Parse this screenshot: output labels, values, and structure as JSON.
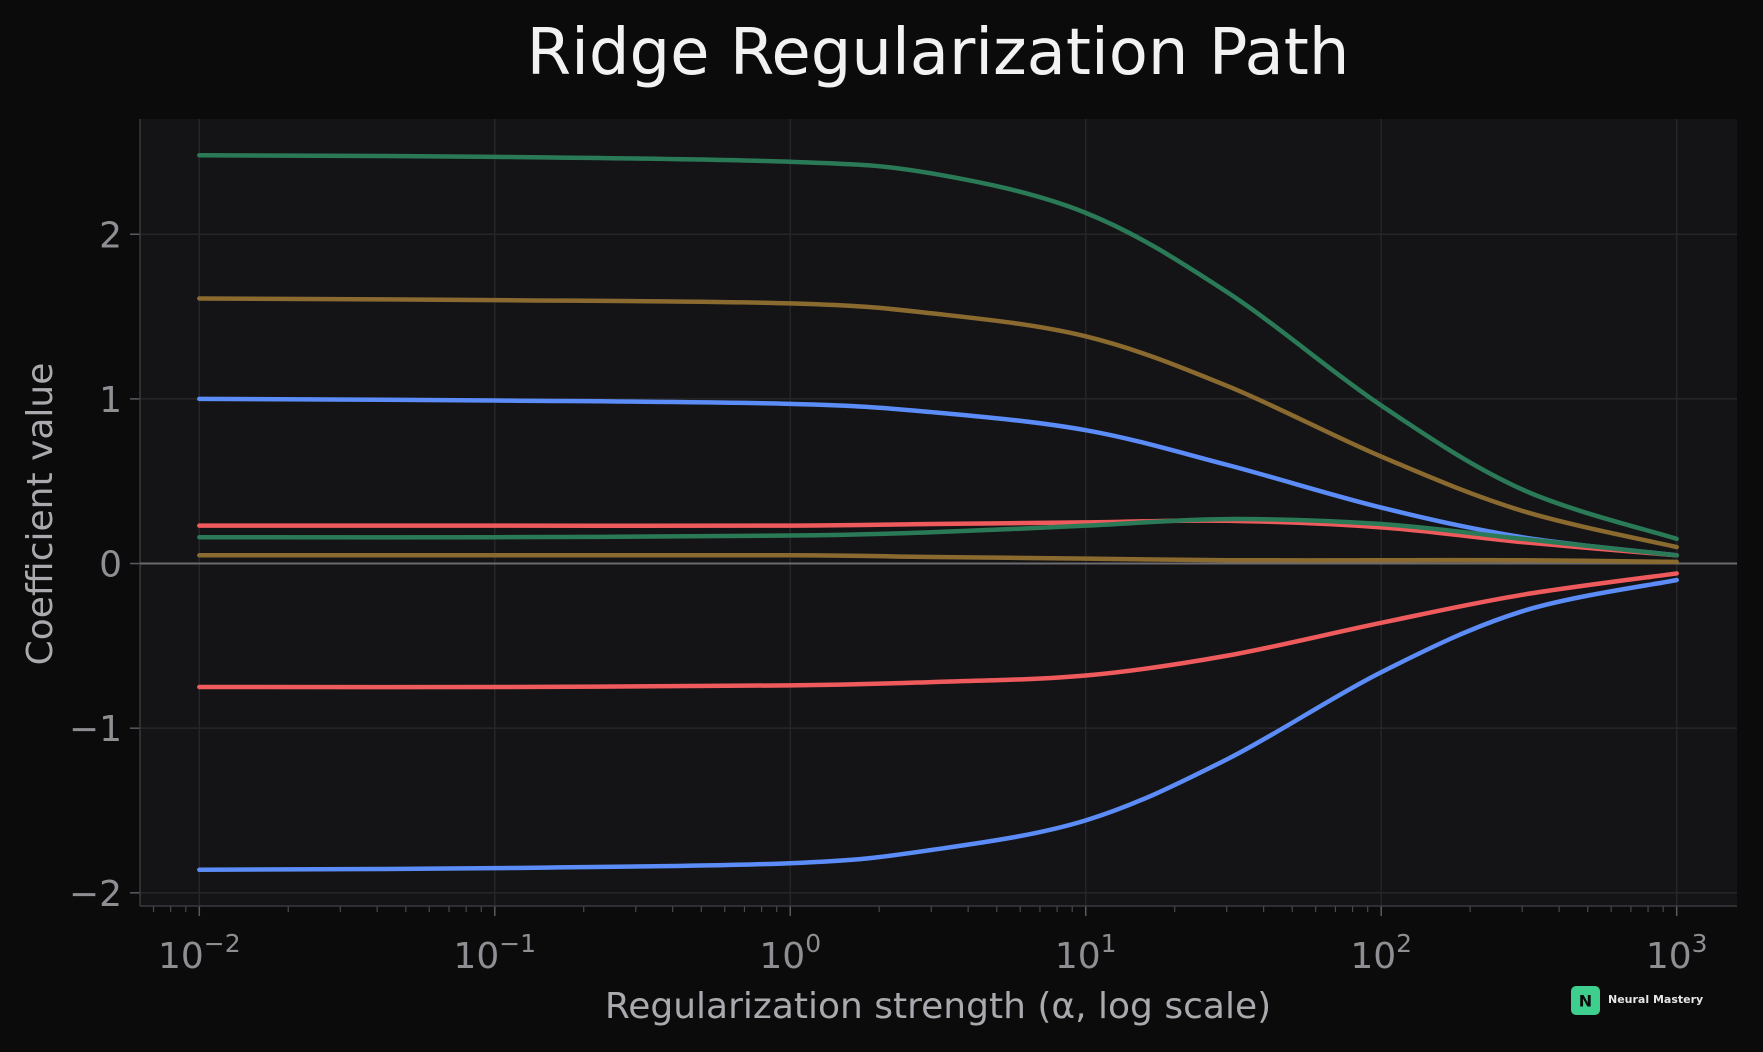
{
  "chart_data": {
    "type": "line",
    "title": "Ridge Regularization Path",
    "xlabel": "Regularization strength (α, log scale)",
    "ylabel": "Coefficient value",
    "x_scale": "log",
    "xlim": [
      0.0063,
      1600
    ],
    "ylim": [
      -2.08,
      2.7
    ],
    "x_ticks": [
      {
        "value": 0.01,
        "base": "10",
        "exp": "−2"
      },
      {
        "value": 0.1,
        "base": "10",
        "exp": "−1"
      },
      {
        "value": 1,
        "base": "10",
        "exp": "0"
      },
      {
        "value": 10,
        "base": "10",
        "exp": "1"
      },
      {
        "value": 100,
        "base": "10",
        "exp": "2"
      },
      {
        "value": 1000,
        "base": "10",
        "exp": "3"
      }
    ],
    "y_ticks": [
      {
        "value": 2,
        "label": "2"
      },
      {
        "value": 1,
        "label": "1"
      },
      {
        "value": 0,
        "label": "0"
      },
      {
        "value": -1,
        "label": "−1"
      },
      {
        "value": -2,
        "label": "−2"
      }
    ],
    "grid": true,
    "zero_line": true,
    "background": "#141416",
    "series": [
      {
        "color": "#2a7a57",
        "x": [
          0.01,
          0.1,
          1,
          3,
          10,
          30,
          100,
          300,
          1000
        ],
        "values": [
          2.48,
          2.47,
          2.44,
          2.37,
          2.13,
          1.65,
          0.96,
          0.45,
          0.15
        ]
      },
      {
        "color": "#8a6a2e",
        "x": [
          0.01,
          0.1,
          1,
          3,
          10,
          30,
          100,
          300,
          1000
        ],
        "values": [
          1.61,
          1.6,
          1.58,
          1.52,
          1.38,
          1.08,
          0.65,
          0.32,
          0.1
        ]
      },
      {
        "color": "#5b8cf7",
        "x": [
          0.01,
          0.1,
          1,
          3,
          10,
          30,
          100,
          300,
          1000
        ],
        "values": [
          1.0,
          0.99,
          0.97,
          0.92,
          0.81,
          0.6,
          0.34,
          0.16,
          0.05
        ]
      },
      {
        "color": "#ef5a5c",
        "x": [
          0.01,
          0.1,
          1,
          3,
          10,
          30,
          100,
          300,
          1000
        ],
        "values": [
          0.23,
          0.23,
          0.23,
          0.24,
          0.25,
          0.26,
          0.22,
          0.13,
          0.05
        ]
      },
      {
        "color": "#2a7a57",
        "x": [
          0.01,
          0.1,
          1,
          3,
          10,
          30,
          100,
          300,
          1000
        ],
        "values": [
          0.16,
          0.16,
          0.17,
          0.19,
          0.23,
          0.27,
          0.24,
          0.15,
          0.05
        ]
      },
      {
        "color": "#8a6a2e",
        "x": [
          0.01,
          0.1,
          1,
          3,
          10,
          30,
          100,
          300,
          1000
        ],
        "values": [
          0.05,
          0.05,
          0.05,
          0.04,
          0.03,
          0.02,
          0.02,
          0.02,
          0.01
        ]
      },
      {
        "color": "#ef5a5c",
        "x": [
          0.01,
          0.1,
          1,
          3,
          10,
          30,
          100,
          300,
          1000
        ],
        "values": [
          -0.75,
          -0.75,
          -0.74,
          -0.72,
          -0.68,
          -0.56,
          -0.36,
          -0.19,
          -0.06
        ]
      },
      {
        "color": "#5b8cf7",
        "x": [
          0.01,
          0.1,
          1,
          3,
          10,
          30,
          100,
          300,
          1000
        ],
        "values": [
          -1.86,
          -1.85,
          -1.82,
          -1.74,
          -1.56,
          -1.19,
          -0.66,
          -0.29,
          -0.1
        ]
      }
    ]
  },
  "branding": {
    "logo_letter": "N",
    "logo_text": "Neural Mastery",
    "logo_color": "#3ecf8e"
  }
}
